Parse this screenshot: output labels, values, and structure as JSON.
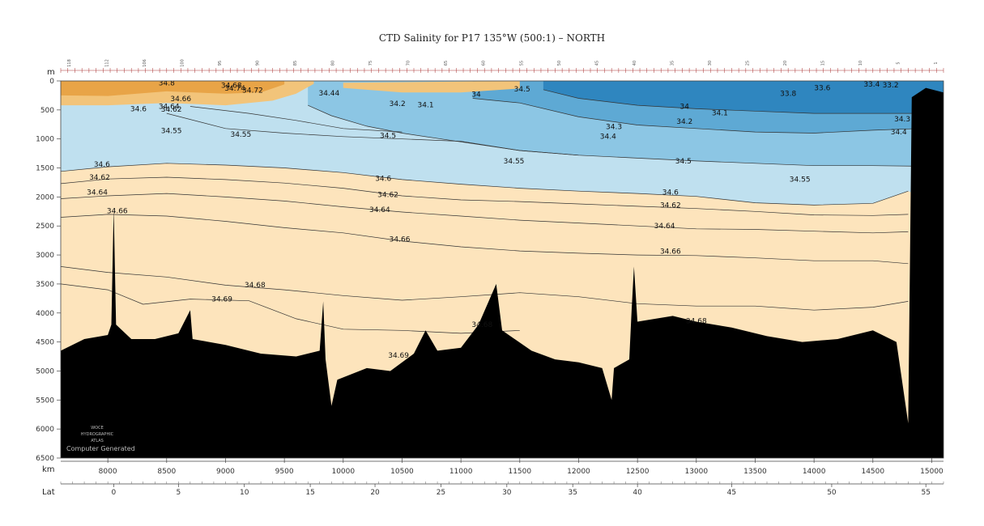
{
  "chart_data": {
    "type": "contour-section",
    "title": "CTD Salinity for P17 135°W (500:1) – NORTH",
    "depth_unit": "m",
    "distance_unit": "km",
    "lat_label": "Lat",
    "ylim": [
      0,
      6500
    ],
    "xlim": [
      7600,
      15100
    ],
    "y_ticks": [
      0,
      500,
      1000,
      1500,
      2000,
      2500,
      3000,
      3500,
      4000,
      4500,
      5000,
      5500,
      6000,
      6500
    ],
    "x_ticks": [
      8000,
      8500,
      9000,
      9500,
      10000,
      10500,
      11000,
      11500,
      12000,
      12500,
      13000,
      13500,
      14000,
      14500,
      15000
    ],
    "lat_ticks": [
      {
        "lat": "0",
        "km": 8050
      },
      {
        "lat": "5",
        "km": 8600
      },
      {
        "lat": "10",
        "km": 9160
      },
      {
        "lat": "15",
        "km": 9720
      },
      {
        "lat": "20",
        "km": 10270
      },
      {
        "lat": "25",
        "km": 10830
      },
      {
        "lat": "30",
        "km": 11390
      },
      {
        "lat": "35",
        "km": 11950
      },
      {
        "lat": "40",
        "km": 12500
      },
      {
        "lat": "45",
        "km": 13300
      },
      {
        "lat": "50",
        "km": 14150
      },
      {
        "lat": "55",
        "km": 14950
      }
    ],
    "stations": [
      "118",
      "112",
      "106",
      "100",
      "95",
      "90",
      "85",
      "80",
      "75",
      "70",
      "65",
      "60",
      "55",
      "50",
      "45",
      "40",
      "35",
      "30",
      "25",
      "20",
      "15",
      "10",
      "5",
      "1"
    ],
    "contour_labels": [
      {
        "text": "34.8",
        "km": 8500,
        "depth": 80
      },
      {
        "text": "34.66",
        "km": 8620,
        "depth": 350
      },
      {
        "text": "34.6",
        "km": 8260,
        "depth": 520
      },
      {
        "text": "34.64",
        "km": 8520,
        "depth": 480
      },
      {
        "text": "34.62",
        "km": 8540,
        "depth": 530
      },
      {
        "text": "34.55",
        "km": 8540,
        "depth": 900
      },
      {
        "text": "34.55",
        "km": 9130,
        "depth": 960
      },
      {
        "text": "34.74",
        "km": 9080,
        "depth": 170
      },
      {
        "text": "34.72",
        "km": 9230,
        "depth": 200
      },
      {
        "text": "34.68",
        "km": 9050,
        "depth": 120
      },
      {
        "text": "34.44",
        "km": 9880,
        "depth": 250
      },
      {
        "text": "34.2",
        "km": 10460,
        "depth": 430
      },
      {
        "text": "34.1",
        "km": 10700,
        "depth": 450
      },
      {
        "text": "34",
        "km": 11130,
        "depth": 270
      },
      {
        "text": "34.5",
        "km": 11520,
        "depth": 180
      },
      {
        "text": "34.5",
        "km": 10380,
        "depth": 980
      },
      {
        "text": "34.55",
        "km": 11450,
        "depth": 1420
      },
      {
        "text": "34",
        "km": 12900,
        "depth": 480
      },
      {
        "text": "34.1",
        "km": 13200,
        "depth": 590
      },
      {
        "text": "34.2",
        "km": 12900,
        "depth": 740
      },
      {
        "text": "34.3",
        "km": 12300,
        "depth": 830
      },
      {
        "text": "34.4",
        "km": 12250,
        "depth": 1000
      },
      {
        "text": "34.5",
        "km": 12890,
        "depth": 1420
      },
      {
        "text": "33.8",
        "km": 13780,
        "depth": 260
      },
      {
        "text": "33.6",
        "km": 14070,
        "depth": 160
      },
      {
        "text": "33.4",
        "km": 14490,
        "depth": 100
      },
      {
        "text": "33.2",
        "km": 14650,
        "depth": 110
      },
      {
        "text": "34.3",
        "km": 14750,
        "depth": 700
      },
      {
        "text": "34.4",
        "km": 14720,
        "depth": 920
      },
      {
        "text": "34.55",
        "km": 13880,
        "depth": 1740
      },
      {
        "text": "34.6",
        "km": 7950,
        "depth": 1480
      },
      {
        "text": "34.62",
        "km": 7930,
        "depth": 1700
      },
      {
        "text": "34.64",
        "km": 7910,
        "depth": 1960
      },
      {
        "text": "34.66",
        "km": 8080,
        "depth": 2280
      },
      {
        "text": "34.6",
        "km": 10340,
        "depth": 1720
      },
      {
        "text": "34.62",
        "km": 10380,
        "depth": 2000
      },
      {
        "text": "34.64",
        "km": 10310,
        "depth": 2260
      },
      {
        "text": "34.66",
        "km": 10480,
        "depth": 2770
      },
      {
        "text": "34.6",
        "km": 12780,
        "depth": 1960
      },
      {
        "text": "34.62",
        "km": 12780,
        "depth": 2180
      },
      {
        "text": "34.64",
        "km": 12730,
        "depth": 2540
      },
      {
        "text": "34.66",
        "km": 12780,
        "depth": 2980
      },
      {
        "text": "34.68",
        "km": 9250,
        "depth": 3560
      },
      {
        "text": "34.69",
        "km": 8970,
        "depth": 3800
      },
      {
        "text": "34.68",
        "km": 11180,
        "depth": 4240
      },
      {
        "text": "34.69",
        "km": 10470,
        "depth": 4770
      },
      {
        "text": "34.68",
        "km": 13000,
        "depth": 4180
      }
    ],
    "fill_colors": {
      "very_salty": "#e8a447",
      "salty": "#f2c47a",
      "mid": "#fde4bc",
      "fresh1": "#bfe0ef",
      "fresh2": "#8cc6e4",
      "fresh3": "#5ea9d4",
      "fresh4": "#2f86bf",
      "bottom": "#000000"
    }
  },
  "watermark": {
    "line1": "WOCE",
    "line2": "HYDROGRAPHIC",
    "line3": "ATLAS",
    "line4": "Computer Generated"
  }
}
